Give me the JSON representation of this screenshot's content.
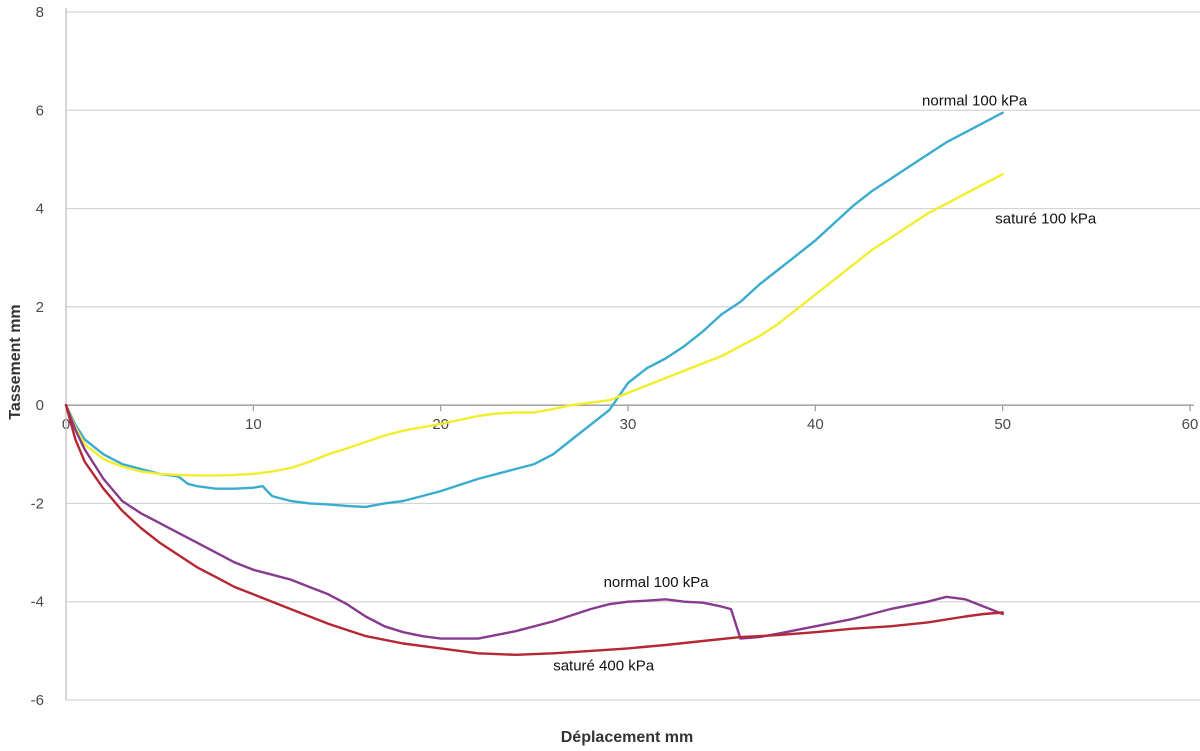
{
  "chart_data": {
    "type": "line",
    "title": "",
    "xlabel": "Déplacement mm",
    "ylabel": "Tassement mm",
    "xlim": [
      0,
      60
    ],
    "ylim": [
      -6,
      8
    ],
    "xticks": [
      0,
      10,
      20,
      30,
      40,
      50,
      60
    ],
    "yticks": [
      -6,
      -4,
      -2,
      0,
      2,
      4,
      6,
      8
    ],
    "grid": "horizontal",
    "series": [
      {
        "name": "normal 100 kPa",
        "label": "normal 100 kPa",
        "color": "#3AACCE",
        "x": [
          0,
          0.5,
          1,
          2,
          3,
          4,
          5,
          6,
          6.5,
          7,
          8,
          9,
          10,
          10.5,
          11,
          12,
          13,
          14,
          15,
          16,
          17,
          18,
          19,
          20,
          22,
          24,
          25,
          26,
          27,
          28,
          29,
          30,
          31,
          32,
          33,
          34,
          35,
          36,
          37,
          38,
          39,
          40,
          41,
          42,
          43,
          44,
          45,
          46,
          47,
          48,
          49,
          50
        ],
        "y": [
          0,
          -0.4,
          -0.7,
          -1.0,
          -1.2,
          -1.3,
          -1.4,
          -1.45,
          -1.6,
          -1.65,
          -1.7,
          -1.7,
          -1.68,
          -1.65,
          -1.85,
          -1.95,
          -2.0,
          -2.02,
          -2.05,
          -2.07,
          -2.0,
          -1.95,
          -1.85,
          -1.75,
          -1.5,
          -1.3,
          -1.2,
          -1.0,
          -0.7,
          -0.4,
          -0.1,
          0.45,
          0.75,
          0.95,
          1.2,
          1.5,
          1.85,
          2.1,
          2.45,
          2.75,
          3.05,
          3.35,
          3.7,
          4.05,
          4.35,
          4.6,
          4.85,
          5.1,
          5.35,
          5.55,
          5.75,
          5.95
        ],
        "label_at": [
          48.5,
          6.2
        ]
      },
      {
        "name": "saturé 100 kPa",
        "label": "saturé 100 kPa",
        "color": "#F2EE2E",
        "x": [
          0,
          0.5,
          1,
          2,
          3,
          4,
          5,
          6,
          7,
          8,
          9,
          10,
          11,
          12,
          13,
          14,
          15,
          16,
          17,
          18,
          19,
          20,
          21,
          22,
          23,
          24,
          25,
          26,
          27,
          28,
          29,
          30,
          31,
          32,
          33,
          34,
          35,
          36,
          37,
          38,
          39,
          40,
          41,
          42,
          43,
          44,
          45,
          46,
          47,
          48,
          49,
          50
        ],
        "y": [
          0,
          -0.45,
          -0.8,
          -1.1,
          -1.25,
          -1.35,
          -1.4,
          -1.42,
          -1.43,
          -1.43,
          -1.42,
          -1.4,
          -1.35,
          -1.28,
          -1.15,
          -1.0,
          -0.88,
          -0.75,
          -0.62,
          -0.52,
          -0.45,
          -0.38,
          -0.3,
          -0.22,
          -0.17,
          -0.15,
          -0.15,
          -0.08,
          0.0,
          0.05,
          0.1,
          0.25,
          0.4,
          0.55,
          0.7,
          0.85,
          1.0,
          1.2,
          1.4,
          1.65,
          1.95,
          2.25,
          2.55,
          2.85,
          3.15,
          3.4,
          3.65,
          3.9,
          4.1,
          4.3,
          4.5,
          4.7
        ],
        "label_at": [
          52.3,
          3.8
        ]
      },
      {
        "name": "normal 100 kPa",
        "label": "normal 100 kPa",
        "color": "#883A8E",
        "x": [
          0,
          0.5,
          1,
          2,
          3,
          4,
          5,
          6,
          7,
          8,
          9,
          10,
          11,
          12,
          13,
          14,
          15,
          16,
          17,
          18,
          19,
          20,
          22,
          24,
          26,
          28,
          29,
          30,
          31,
          32,
          33,
          34,
          35,
          35.5,
          36,
          37,
          38,
          40,
          42,
          44,
          46,
          47,
          48,
          49,
          50
        ],
        "y": [
          0,
          -0.5,
          -0.9,
          -1.5,
          -1.95,
          -2.2,
          -2.4,
          -2.6,
          -2.8,
          -3.0,
          -3.2,
          -3.35,
          -3.45,
          -3.55,
          -3.7,
          -3.85,
          -4.05,
          -4.3,
          -4.5,
          -4.62,
          -4.7,
          -4.75,
          -4.75,
          -4.6,
          -4.4,
          -4.15,
          -4.05,
          -4.0,
          -3.98,
          -3.95,
          -4.0,
          -4.02,
          -4.1,
          -4.15,
          -4.75,
          -4.72,
          -4.65,
          -4.5,
          -4.35,
          -4.15,
          -4.0,
          -3.9,
          -3.95,
          -4.1,
          -4.25
        ],
        "label_at": [
          31.5,
          -3.6
        ]
      },
      {
        "name": "saturé 400 kPa",
        "label": "saturé 400 kPa",
        "color": "#B52733",
        "x": [
          0,
          0.5,
          1,
          2,
          3,
          4,
          5,
          6,
          7,
          8,
          9,
          10,
          12,
          14,
          16,
          18,
          20,
          22,
          24,
          26,
          28,
          30,
          32,
          34,
          36,
          38,
          40,
          42,
          44,
          46,
          48,
          49,
          50
        ],
        "y": [
          0,
          -0.7,
          -1.15,
          -1.7,
          -2.15,
          -2.5,
          -2.8,
          -3.05,
          -3.3,
          -3.5,
          -3.7,
          -3.85,
          -4.15,
          -4.45,
          -4.7,
          -4.85,
          -4.95,
          -5.05,
          -5.08,
          -5.05,
          -5.0,
          -4.95,
          -4.88,
          -4.8,
          -4.72,
          -4.68,
          -4.62,
          -4.55,
          -4.5,
          -4.42,
          -4.3,
          -4.25,
          -4.22
        ],
        "label_at": [
          28.7,
          -5.3
        ]
      }
    ]
  }
}
